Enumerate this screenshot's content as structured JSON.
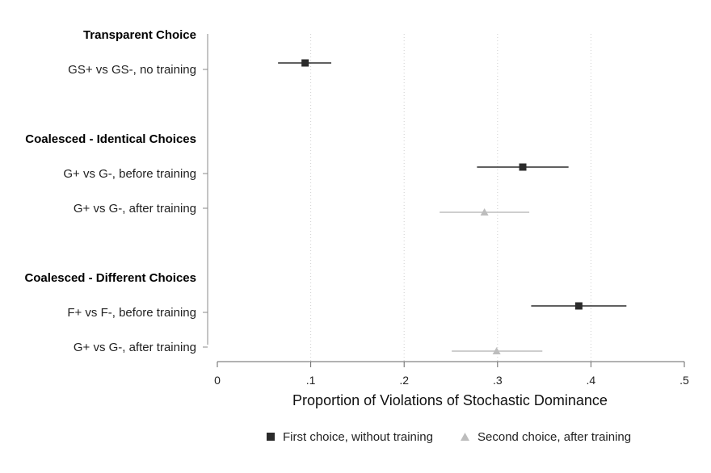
{
  "chart_data": {
    "type": "scatter",
    "xlabel": "Proportion of Violations of Stochastic Dominance",
    "xlim": [
      0,
      0.5
    ],
    "xticks": [
      0,
      0.1,
      0.2,
      0.3,
      0.4,
      0.5
    ],
    "xtick_labels": [
      "0",
      ".1",
      ".2",
      ".3",
      ".4",
      ".5"
    ],
    "grid": "vertical dotted at ticks",
    "legend_position": "bottom",
    "groups": [
      {
        "title": "Transparent Choice",
        "rows": [
          {
            "label": "GS+ vs GS-, no training",
            "series": 0,
            "estimate": 0.094,
            "ci": [
              0.065,
              0.122
            ]
          }
        ]
      },
      {
        "title": "Coalesced - Identical Choices",
        "rows": [
          {
            "label": "G+ vs G-, before training",
            "series": 0,
            "estimate": 0.327,
            "ci": [
              0.278,
              0.376
            ]
          },
          {
            "label": "G+ vs G-, after training",
            "series": 1,
            "estimate": 0.286,
            "ci": [
              0.238,
              0.334
            ]
          }
        ]
      },
      {
        "title": "Coalesced - Different Choices",
        "rows": [
          {
            "label": "F+ vs F-, before training",
            "series": 0,
            "estimate": 0.387,
            "ci": [
              0.336,
              0.438
            ]
          },
          {
            "label": "G+ vs G-, after training",
            "series": 1,
            "estimate": 0.299,
            "ci": [
              0.251,
              0.348
            ]
          }
        ]
      }
    ],
    "series": [
      {
        "name": "First choice, without training",
        "marker": "square",
        "color": "#2b2b2b",
        "ci_color": "#2b2b2b"
      },
      {
        "name": "Second choice, after training",
        "marker": "triangle",
        "color": "#bdbdbd",
        "ci_color": "#bdbdbd"
      }
    ]
  }
}
